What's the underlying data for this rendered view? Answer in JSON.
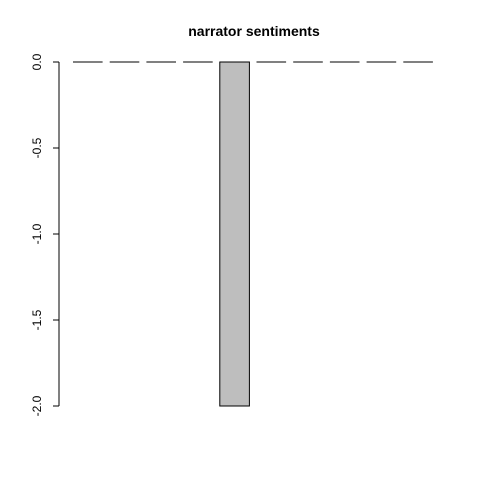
{
  "chart_data": {
    "type": "bar",
    "title": "narrator sentiments",
    "values": [
      0,
      0,
      0,
      0,
      -2,
      0,
      0,
      0,
      0,
      0
    ],
    "ylim": [
      -2,
      0
    ],
    "yticks": [
      0.0,
      -0.5,
      -1.0,
      -1.5,
      -2.0
    ],
    "ytick_labels": [
      "0.0",
      "-0.5",
      "-1.0",
      "-1.5",
      "-2.0"
    ],
    "bar_color": "#bebebe",
    "outline_color": "#000000"
  }
}
